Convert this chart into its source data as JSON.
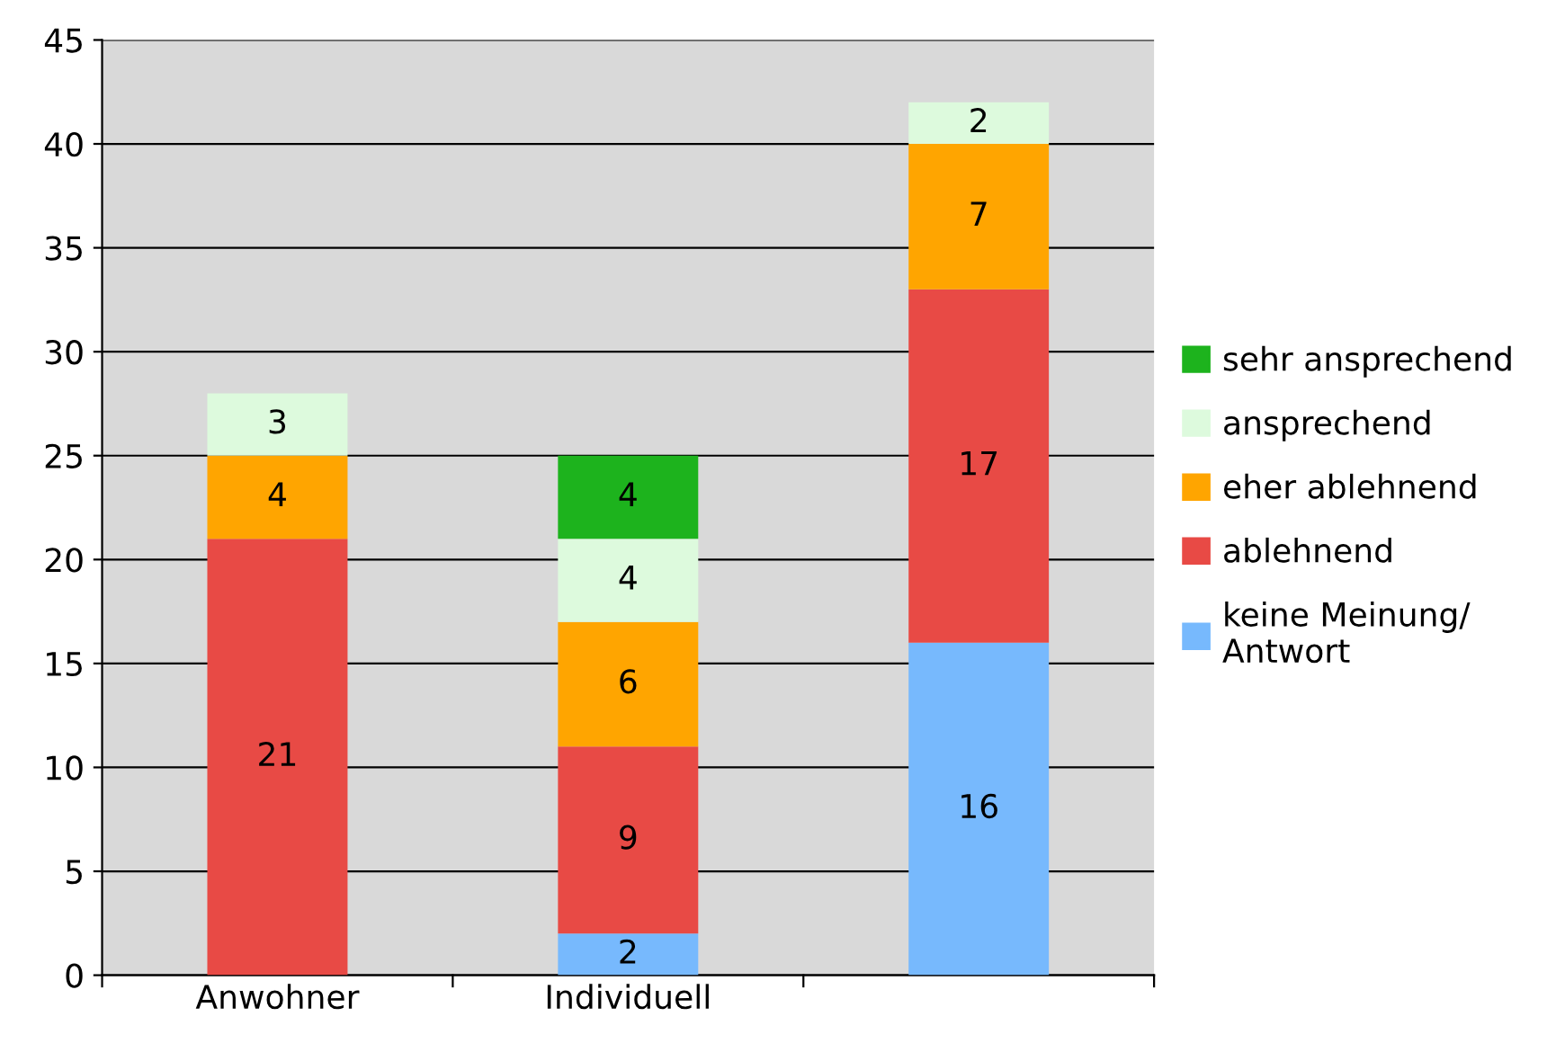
{
  "chart_data": {
    "type": "bar",
    "stacked": true,
    "categories": [
      "Anwohner",
      "Individuell",
      null
    ],
    "series": [
      {
        "name": "keine Meinung/\nAntwort",
        "color": "#77b9fd",
        "values": [
          0,
          2,
          16
        ],
        "value_labels": [
          null,
          "2",
          "16"
        ]
      },
      {
        "name": "ablehnend",
        "color": "#e84a45",
        "values": [
          21,
          9,
          17
        ],
        "value_labels": [
          "21",
          "9",
          "17"
        ]
      },
      {
        "name": "eher ablehnend",
        "color": "#ffa500",
        "values": [
          4,
          6,
          7
        ],
        "value_labels": [
          "4",
          "6",
          "7"
        ]
      },
      {
        "name": "ansprechend",
        "color": "#ddfadd",
        "values": [
          3,
          4,
          2
        ],
        "value_labels": [
          "3",
          "4",
          "2"
        ]
      },
      {
        "name": "sehr ansprechend",
        "color": "#1db31d",
        "values": [
          0,
          4,
          0
        ],
        "value_labels": [
          null,
          "4",
          null
        ]
      }
    ],
    "ylim": [
      0,
      45
    ],
    "yticks": [
      0,
      5,
      10,
      15,
      20,
      25,
      30,
      35,
      40,
      45
    ],
    "grid": "y",
    "legend": "right"
  }
}
